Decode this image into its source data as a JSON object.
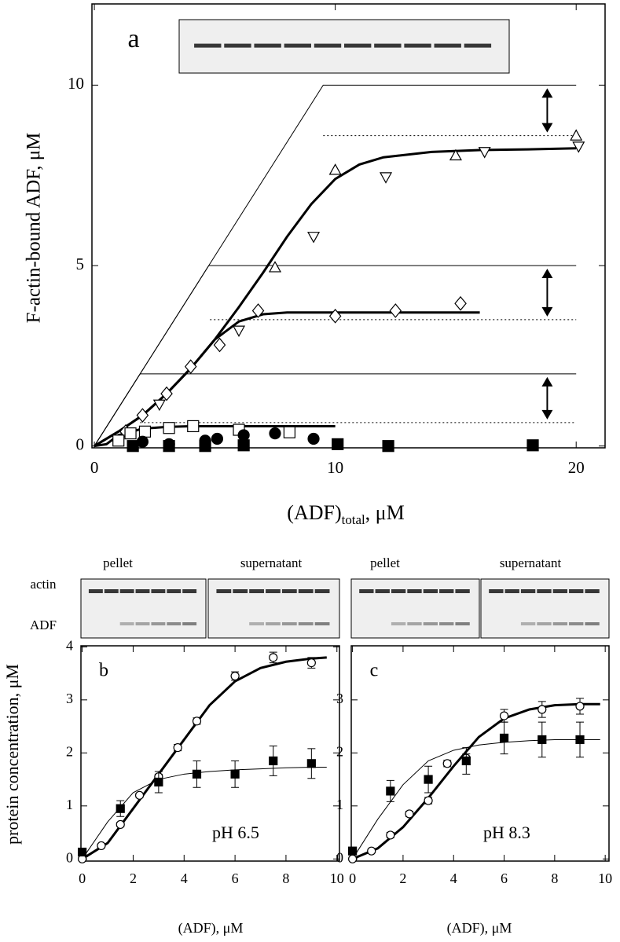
{
  "chart_data": [
    {
      "type": "scatter",
      "panel_label": "a",
      "ylabel": "F-actin-bound ADF, μM",
      "xlabel": {
        "text": "(ADF)",
        "sub": "total",
        "unit": ", μM"
      },
      "xlim": [
        -0.1,
        21.2
      ],
      "ylim": [
        -0.05,
        12.25
      ],
      "xticks": [
        0,
        10,
        20
      ],
      "yticks": [
        0,
        5,
        10
      ],
      "arrows": true,
      "lines": [
        {
          "style": "thin",
          "x": [
            0,
            9.5,
            20
          ],
          "values": [
            0,
            10,
            10
          ]
        },
        {
          "style": "thin",
          "x": [
            0,
            4.75,
            20
          ],
          "values": [
            0,
            5,
            5
          ]
        },
        {
          "style": "thin",
          "x": [
            0,
            1.9,
            20
          ],
          "values": [
            0,
            2,
            2
          ]
        },
        {
          "style": "dotted",
          "x": [
            9.5,
            20
          ],
          "values": [
            8.6,
            8.6
          ]
        },
        {
          "style": "dotted",
          "x": [
            4.8,
            20
          ],
          "values": [
            3.5,
            3.5
          ]
        },
        {
          "style": "dotted",
          "x": [
            1.9,
            20
          ],
          "values": [
            0.65,
            0.65
          ]
        },
        {
          "style": "thick",
          "x": [
            0,
            1,
            2,
            3,
            4,
            5,
            6,
            7,
            8,
            9,
            10,
            11,
            12,
            14,
            16,
            18,
            20
          ],
          "values": [
            0,
            0.4,
            0.85,
            1.45,
            2.15,
            2.95,
            3.85,
            4.8,
            5.8,
            6.7,
            7.4,
            7.8,
            8.0,
            8.15,
            8.2,
            8.22,
            8.25
          ]
        },
        {
          "style": "thick",
          "x": [
            0,
            1,
            2,
            3,
            4,
            5,
            6,
            7,
            8,
            10,
            12,
            14,
            16
          ],
          "values": [
            0,
            0.4,
            0.85,
            1.45,
            2.15,
            2.95,
            3.45,
            3.65,
            3.7,
            3.7,
            3.7,
            3.7,
            3.7
          ]
        },
        {
          "style": "thick",
          "x": [
            0,
            0.5,
            1,
            2,
            3,
            4,
            6,
            8,
            10
          ],
          "values": [
            0,
            0.05,
            0.3,
            0.48,
            0.53,
            0.55,
            0.55,
            0.55,
            0.55
          ]
        }
      ],
      "series": [
        {
          "marker": "triangle-up",
          "filled": false,
          "color": "#000000",
          "x": [
            7.5,
            10,
            15,
            20
          ],
          "values": [
            4.95,
            7.65,
            8.05,
            8.6
          ]
        },
        {
          "marker": "triangle-down",
          "filled": false,
          "color": "#000000",
          "x": [
            2.7,
            6.0,
            9.1,
            12.1,
            16.2,
            20.1
          ],
          "values": [
            1.15,
            3.2,
            5.8,
            7.45,
            8.15,
            8.3
          ]
        },
        {
          "marker": "diamond",
          "filled": false,
          "color": "#000000",
          "x": [
            1.3,
            2.0,
            3.0,
            4.0,
            5.2,
            6.8,
            10.0,
            12.5,
            15.2
          ],
          "values": [
            0.4,
            0.85,
            1.45,
            2.2,
            2.8,
            3.75,
            3.6,
            3.75,
            3.95
          ]
        },
        {
          "marker": "square",
          "filled": false,
          "color": "#000000",
          "x": [
            1.0,
            1.5,
            2.1,
            3.1,
            4.1,
            6.0,
            8.1
          ],
          "values": [
            0.15,
            0.35,
            0.4,
            0.5,
            0.55,
            0.45,
            0.38
          ]
        },
        {
          "marker": "circle",
          "filled": true,
          "color": "#000000",
          "x": [
            2.0,
            3.1,
            4.6,
            5.1,
            6.2,
            7.5,
            9.1
          ],
          "values": [
            0.12,
            0.05,
            0.15,
            0.2,
            0.3,
            0.35,
            0.2
          ]
        },
        {
          "marker": "square",
          "filled": true,
          "color": "#000000",
          "x": [
            1.6,
            3.1,
            4.6,
            6.2,
            10.1,
            12.2,
            18.2
          ],
          "values": [
            0,
            0,
            0,
            0.02,
            0.05,
            0,
            0.02
          ]
        }
      ]
    },
    {
      "type": "scatter",
      "panel_label": "b",
      "annotation": "pH 6.5",
      "ylabel": "protein concentration, μM",
      "xlabel": {
        "text": "(ADF)",
        "unit": ", μM"
      },
      "gel_labels": [
        "pellet",
        "supernatant"
      ],
      "lane_labels": [
        "actin",
        "ADF"
      ],
      "xlim": [
        -0.05,
        10.1
      ],
      "ylim": [
        -0.04,
        4.02
      ],
      "xticks": [
        0,
        2,
        4,
        6,
        8,
        10
      ],
      "yticks": [
        0,
        1,
        2,
        3,
        4
      ],
      "lines": [
        {
          "style": "thick",
          "x": [
            0,
            1,
            2,
            3,
            4,
            5,
            6,
            7,
            8,
            9,
            9.6
          ],
          "values": [
            0,
            0.3,
            0.95,
            1.6,
            2.25,
            2.9,
            3.35,
            3.6,
            3.72,
            3.78,
            3.8
          ]
        },
        {
          "style": "thin",
          "x": [
            0,
            1,
            2,
            3,
            4,
            5,
            6,
            7,
            8,
            9,
            9.6
          ],
          "values": [
            0,
            0.7,
            1.25,
            1.5,
            1.6,
            1.65,
            1.68,
            1.7,
            1.72,
            1.73,
            1.73
          ]
        }
      ],
      "series": [
        {
          "marker": "circle",
          "filled": false,
          "color": "#000000",
          "x": [
            0,
            0.75,
            1.5,
            2.25,
            3,
            3.75,
            4.5,
            6,
            7.5,
            9
          ],
          "values": [
            0,
            0.25,
            0.65,
            1.2,
            1.55,
            2.1,
            2.6,
            3.45,
            3.8,
            3.7
          ],
          "errors": [
            0.03,
            0.03,
            0.04,
            0.04,
            0.05,
            0.06,
            0.06,
            0.08,
            0.1,
            0.1
          ]
        },
        {
          "marker": "square",
          "filled": true,
          "color": "#000000",
          "x": [
            0,
            1.5,
            3,
            4.5,
            6,
            7.5,
            9
          ],
          "values": [
            0.13,
            0.95,
            1.45,
            1.6,
            1.6,
            1.85,
            1.8
          ],
          "errors": [
            0.05,
            0.15,
            0.2,
            0.25,
            0.25,
            0.28,
            0.28
          ]
        }
      ]
    },
    {
      "type": "scatter",
      "panel_label": "c",
      "annotation": "pH 8.3",
      "xlabel": {
        "text": "(ADF)",
        "unit": ", μM"
      },
      "gel_labels": [
        "pellet",
        "supernatant"
      ],
      "xlim": [
        -0.05,
        10.15
      ],
      "ylim": [
        -0.04,
        4.02
      ],
      "xticks": [
        0,
        2,
        4,
        6,
        8,
        10
      ],
      "yticks": [
        0,
        1,
        2,
        3
      ],
      "lines": [
        {
          "style": "thick",
          "x": [
            0,
            1,
            2,
            3,
            4,
            5,
            6,
            7,
            8,
            9,
            9.8
          ],
          "values": [
            0,
            0.2,
            0.6,
            1.15,
            1.75,
            2.3,
            2.65,
            2.82,
            2.9,
            2.92,
            2.92
          ]
        },
        {
          "style": "thin",
          "x": [
            0,
            1,
            2,
            3,
            4,
            5,
            6,
            7,
            8,
            9,
            9.8
          ],
          "values": [
            0,
            0.75,
            1.4,
            1.85,
            2.05,
            2.15,
            2.2,
            2.23,
            2.25,
            2.25,
            2.25
          ]
        }
      ],
      "series": [
        {
          "marker": "circle",
          "filled": false,
          "color": "#000000",
          "x": [
            0,
            0.75,
            1.5,
            2.25,
            3,
            3.75,
            4.5,
            6,
            7.5,
            9
          ],
          "values": [
            0,
            0.15,
            0.45,
            0.85,
            1.1,
            1.8,
            1.9,
            2.7,
            2.82,
            2.88
          ],
          "errors": [
            0.03,
            0.03,
            0.05,
            0.05,
            0.06,
            0.06,
            0.08,
            0.12,
            0.15,
            0.15
          ]
        },
        {
          "marker": "square",
          "filled": true,
          "color": "#000000",
          "x": [
            0,
            1.5,
            3,
            4.5,
            6,
            7.5,
            9
          ],
          "values": [
            0.15,
            1.28,
            1.5,
            1.85,
            2.28,
            2.25,
            2.25
          ],
          "errors": [
            0.05,
            0.2,
            0.25,
            0.25,
            0.3,
            0.33,
            0.33
          ]
        }
      ]
    }
  ]
}
